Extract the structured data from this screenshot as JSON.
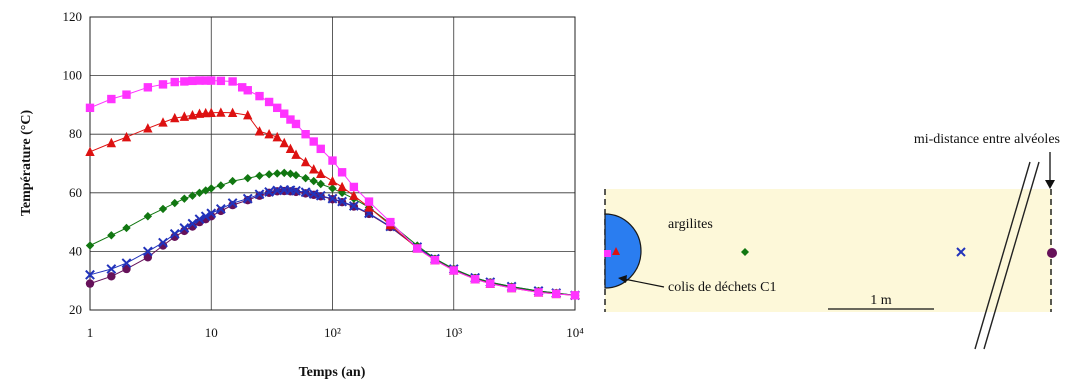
{
  "chart_data": {
    "type": "line",
    "xscale": "log",
    "xlim": [
      1,
      10000
    ],
    "ylim": [
      20,
      120
    ],
    "yticks": [
      20,
      40,
      60,
      80,
      100,
      120
    ],
    "xticks": [
      {
        "value": 1,
        "label": "1"
      },
      {
        "value": 10,
        "label": "10"
      },
      {
        "value": 100,
        "label": "10²"
      },
      {
        "value": 1000,
        "label": "10³"
      },
      {
        "value": 10000,
        "label": "10⁴"
      }
    ],
    "xlabel": "Temps (an)",
    "ylabel": "Température (°C)",
    "grid": true,
    "series": [
      {
        "marker": "square",
        "color": "#ff33ff",
        "x": [
          1,
          1.5,
          2,
          3,
          4,
          5,
          6,
          7,
          8,
          9,
          10,
          12,
          15,
          18,
          20,
          25,
          30,
          35,
          40,
          45,
          50,
          60,
          70,
          80,
          100,
          120,
          150,
          200,
          300,
          500,
          700,
          1000,
          1500,
          2000,
          3000,
          5000,
          7000,
          10000
        ],
        "y": [
          89,
          92,
          93.5,
          96,
          97,
          97.8,
          98,
          98.2,
          98.3,
          98.3,
          98.3,
          98.2,
          98,
          96,
          95,
          93,
          91,
          89,
          87,
          85,
          83.5,
          80,
          77.5,
          75,
          71,
          67,
          62,
          57,
          50,
          41,
          37,
          33.5,
          30.5,
          29,
          27.5,
          26,
          25.5,
          25
        ]
      },
      {
        "marker": "triangle",
        "color": "#dd1111",
        "x": [
          1,
          1.5,
          2,
          3,
          4,
          5,
          6,
          7,
          8,
          9,
          10,
          12,
          15,
          20,
          25,
          30,
          35,
          40,
          45,
          50,
          60,
          70,
          80,
          100,
          120,
          150,
          200,
          300,
          500,
          700,
          1000,
          1500,
          2000,
          3000,
          5000,
          7000,
          10000
        ],
        "y": [
          74,
          77,
          79,
          82,
          84,
          85.5,
          86,
          86.5,
          87,
          87.2,
          87.3,
          87.4,
          87.3,
          86.5,
          81,
          80,
          79,
          77,
          75,
          73,
          70.5,
          68,
          66.5,
          64,
          62,
          59,
          55,
          49,
          41,
          37,
          33.5,
          30.5,
          29,
          27.5,
          26,
          25.5,
          25
        ]
      },
      {
        "marker": "diamond",
        "color": "#117711",
        "x": [
          1,
          1.5,
          2,
          3,
          4,
          5,
          6,
          7,
          8,
          9,
          10,
          12,
          15,
          20,
          25,
          30,
          35,
          40,
          45,
          50,
          60,
          70,
          80,
          100,
          120,
          150,
          200,
          300,
          500,
          700,
          1000,
          1500,
          2000,
          3000,
          5000,
          7000,
          10000
        ],
        "y": [
          42,
          45.5,
          48,
          52,
          54.5,
          56.5,
          58,
          59,
          60,
          60.8,
          61.5,
          62.5,
          64,
          65,
          65.8,
          66.3,
          66.6,
          66.8,
          66.5,
          66,
          65,
          64,
          63,
          61.5,
          60,
          58,
          55,
          49.5,
          42,
          37.5,
          34,
          31,
          29.5,
          28,
          26.5,
          25.8,
          25
        ]
      },
      {
        "marker": "x",
        "color": "#2233bb",
        "x": [
          1,
          1.5,
          2,
          3,
          4,
          5,
          6,
          7,
          8,
          9,
          10,
          12,
          15,
          20,
          25,
          30,
          35,
          40,
          45,
          50,
          60,
          70,
          80,
          100,
          120,
          150,
          200,
          300,
          500,
          700,
          1000,
          1500,
          2000,
          3000,
          5000,
          7000,
          10000
        ],
        "y": [
          32,
          34,
          36,
          40,
          43,
          46,
          48,
          49.5,
          51,
          52,
          53,
          54.5,
          56.5,
          58,
          59.5,
          60.3,
          60.8,
          61,
          60.9,
          60.7,
          60.2,
          59.6,
          59,
          58,
          57,
          55.5,
          53,
          48.5,
          41.5,
          37.5,
          34,
          31,
          29.5,
          28,
          26.5,
          25.8,
          25
        ]
      },
      {
        "marker": "circle",
        "color": "#66115a",
        "x": [
          1,
          1.5,
          2,
          3,
          4,
          5,
          6,
          7,
          8,
          9,
          10,
          12,
          15,
          20,
          25,
          30,
          35,
          40,
          45,
          50,
          60,
          70,
          80,
          100,
          120,
          150,
          200,
          300,
          500,
          700,
          1000,
          1500,
          2000,
          3000,
          5000,
          7000,
          10000
        ],
        "y": [
          29,
          31.5,
          34,
          38,
          42,
          45,
          47,
          48.5,
          50,
          51,
          52,
          53.8,
          55.8,
          57.5,
          59,
          60,
          60.5,
          60.6,
          60.5,
          60.3,
          59.8,
          59.3,
          58.8,
          57.8,
          56.8,
          55.3,
          52.8,
          48.3,
          41.3,
          37.3,
          33.8,
          30.8,
          29.3,
          27.8,
          26.3,
          25.7,
          25
        ]
      }
    ]
  },
  "diagram": {
    "label_argilites": "argilites",
    "label_colis": "colis de déchets C1",
    "label_mi_distance": "mi-distance entre alvéoles",
    "label_scale": "1 m",
    "background_color": "#fdf8d9",
    "canister_color": "#2a7df0"
  }
}
